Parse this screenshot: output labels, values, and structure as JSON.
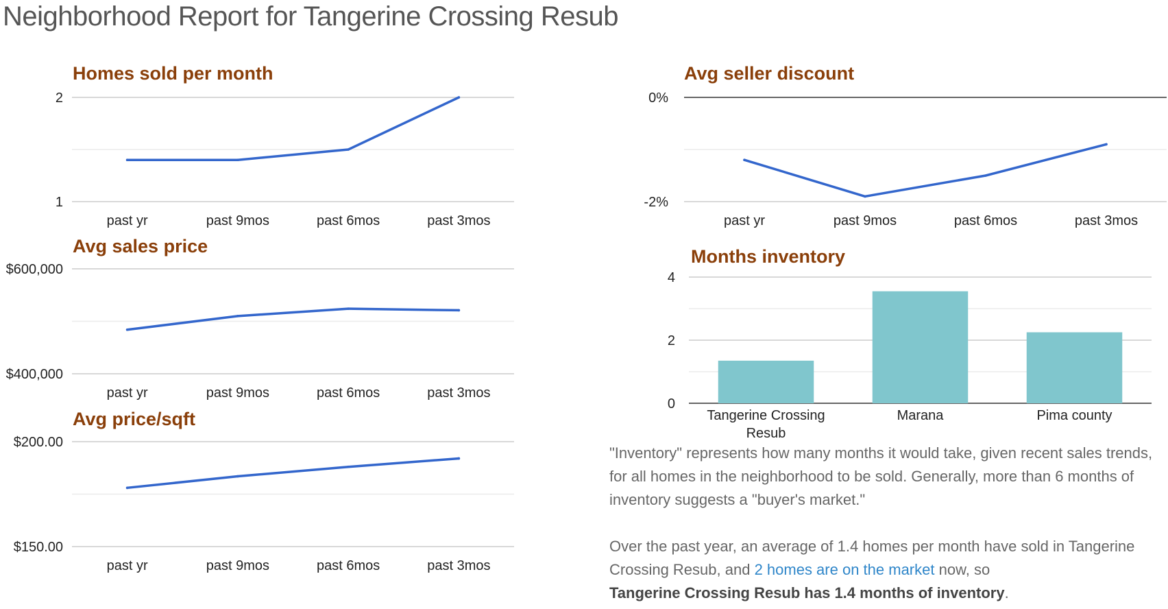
{
  "page": {
    "title": "Neighborhood Report for Tangerine Crossing Resub"
  },
  "chart_data": [
    {
      "type": "line",
      "title": "Homes sold per month",
      "categories": [
        "past yr",
        "past 9mos",
        "past 6mos",
        "past 3mos"
      ],
      "values": [
        1.4,
        1.4,
        1.5,
        2.0
      ],
      "ylim": [
        1,
        2
      ],
      "yticks": [
        "1",
        "2"
      ],
      "grid": true
    },
    {
      "type": "line",
      "title": "Avg seller discount",
      "categories": [
        "past yr",
        "past 9mos",
        "past 6mos",
        "past 3mos"
      ],
      "values": [
        -1.2,
        -1.9,
        -1.5,
        -0.9
      ],
      "ylim": [
        -2,
        0
      ],
      "yticks": [
        "-2%",
        "0%"
      ],
      "grid": true
    },
    {
      "type": "line",
      "title": "Avg sales price",
      "categories": [
        "past yr",
        "past 9mos",
        "past 6mos",
        "past 3mos"
      ],
      "values": [
        484000,
        510000,
        524000,
        521000
      ],
      "ylim": [
        400000,
        600000
      ],
      "yticks": [
        "$400,000",
        "$600,000"
      ],
      "grid": true
    },
    {
      "type": "bar",
      "title": "Months inventory",
      "categories": [
        "Tangerine Crossing Resub",
        "Marana",
        "Pima county"
      ],
      "values": [
        1.35,
        3.55,
        2.25
      ],
      "ylim": [
        0,
        4
      ],
      "yticks": [
        "0",
        "2",
        "4"
      ],
      "grid": true
    },
    {
      "type": "line",
      "title": "Avg price/sqft",
      "categories": [
        "past yr",
        "past 9mos",
        "past 6mos",
        "past 3mos"
      ],
      "values": [
        178,
        183.5,
        188,
        192
      ],
      "ylim": [
        150,
        200
      ],
      "yticks": [
        "$150.00",
        "$200.00"
      ],
      "grid": true
    }
  ],
  "notes": {
    "p1": "\"Inventory\" represents how many months it would take, given recent sales trends, for all homes in the neighborhood to be sold. Generally, more than 6 months of inventory suggests a \"buyer's market.\"",
    "p2_before": "Over the past year, an average of 1.4 homes per month have sold in Tangerine Crossing Resub, and ",
    "p2_link": "2 homes are on the market",
    "p2_after": " now, so",
    "p2_bold": "Tangerine Crossing Resub has 1.4 months of inventory",
    "p2_end": "."
  },
  "colors": {
    "series_line": "#3366cc",
    "bar": "#80c6cd",
    "chart_title": "#8a3f0a",
    "link": "#2f86c9"
  }
}
